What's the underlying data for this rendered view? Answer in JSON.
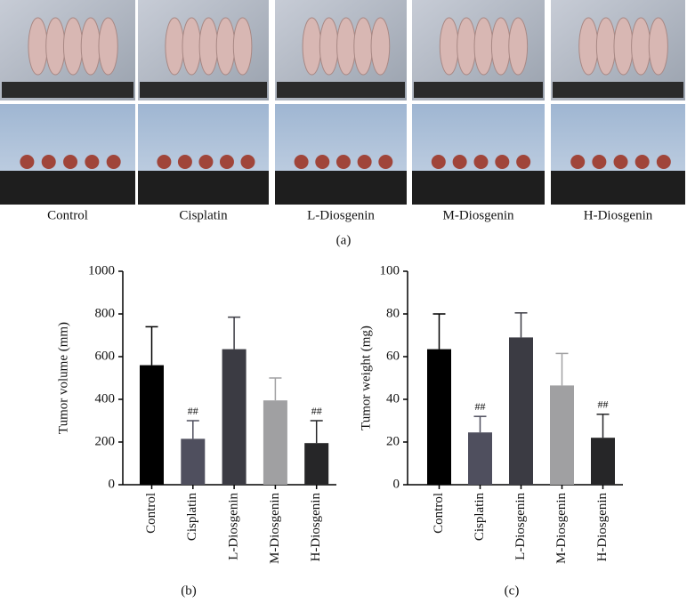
{
  "panel_a": {
    "labels": [
      "Control",
      "Cisplatin",
      "L-Diosgenin",
      "M-Diosgenin",
      "H-Diosgenin"
    ],
    "caption": "(a)"
  },
  "chart_data": [
    {
      "type": "bar",
      "caption": "(b)",
      "y_label": "Tumor volume (mm)",
      "categories": [
        "Control",
        "Cisplatin",
        "L-Diosgenin",
        "M-Diosgenin",
        "H-Diosgenin"
      ],
      "values": [
        560,
        215,
        635,
        395,
        195
      ],
      "errors": [
        180,
        85,
        150,
        105,
        105
      ],
      "colors": [
        "#000000",
        "#4f4f5e",
        "#3b3b43",
        "#a0a0a2",
        "#262628"
      ],
      "annotations": [
        {
          "category": "Cisplatin",
          "text": "##"
        },
        {
          "category": "H-Diosgenin",
          "text": "##"
        }
      ],
      "ylim": [
        0,
        1000
      ],
      "yticks": [
        0,
        200,
        400,
        600,
        800,
        1000
      ]
    },
    {
      "type": "bar",
      "caption": "(c)",
      "y_label": "Tumor weight (mg)",
      "categories": [
        "Control",
        "Cisplatin",
        "L-Diosgenin",
        "M-Diosgenin",
        "H-Diosgenin"
      ],
      "values": [
        63.5,
        24.5,
        69,
        46.5,
        22
      ],
      "errors": [
        16.5,
        7.5,
        11.5,
        15,
        11
      ],
      "colors": [
        "#000000",
        "#4f4f5e",
        "#3b3b43",
        "#a0a0a2",
        "#262628"
      ],
      "annotations": [
        {
          "category": "Cisplatin",
          "text": "##"
        },
        {
          "category": "H-Diosgenin",
          "text": "##"
        }
      ],
      "ylim": [
        0,
        100
      ],
      "yticks": [
        0,
        20,
        40,
        60,
        80,
        100
      ]
    }
  ]
}
